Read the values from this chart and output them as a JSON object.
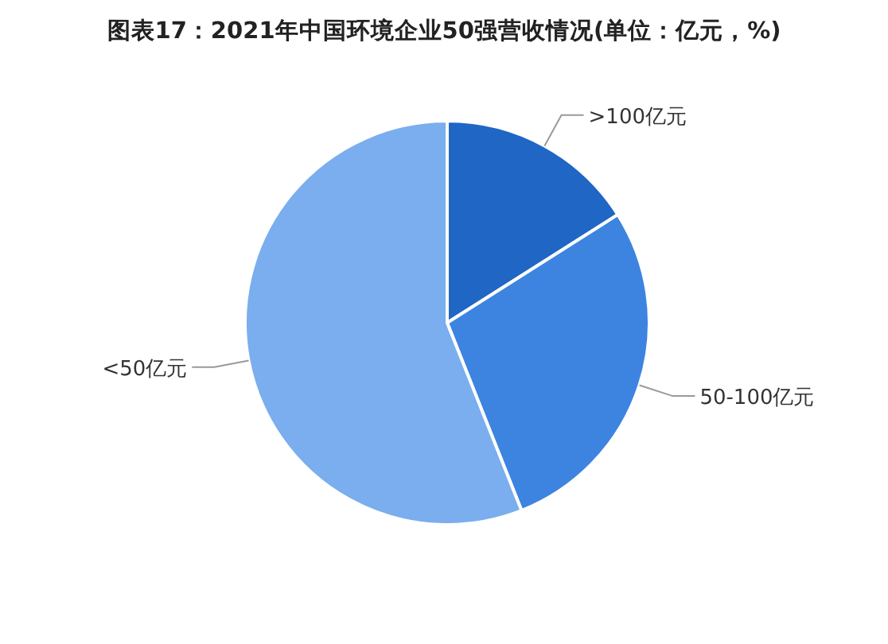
{
  "chart_data": {
    "type": "pie",
    "title": "图表17：2021年中国环境企业50强营收情况(单位：亿元，%)",
    "categories": [
      ">100亿元",
      "50-100亿元",
      "<50亿元"
    ],
    "values": [
      16,
      28,
      56
    ],
    "colors": [
      "#1f66c5",
      "#3d84e0",
      "#7aaeee"
    ]
  }
}
